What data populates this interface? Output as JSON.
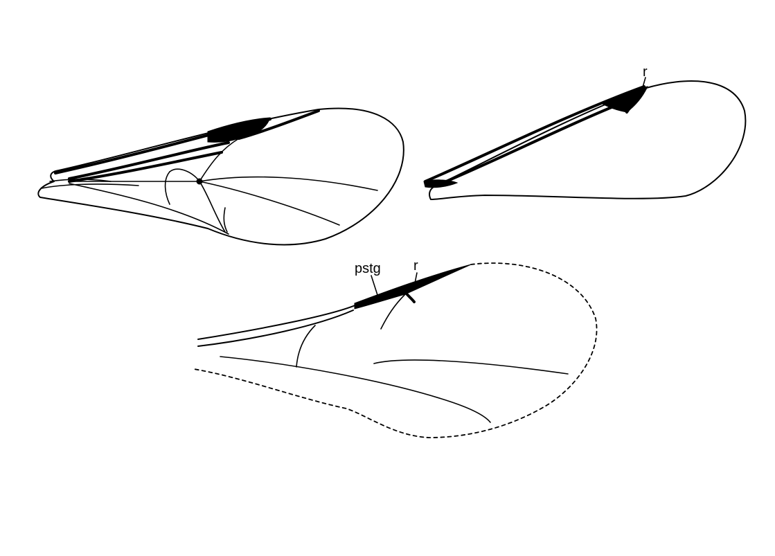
{
  "labels": {
    "forewing_extinct_r": "r",
    "fossil_pterostigma": "pstg",
    "fossil_r": "r"
  }
}
